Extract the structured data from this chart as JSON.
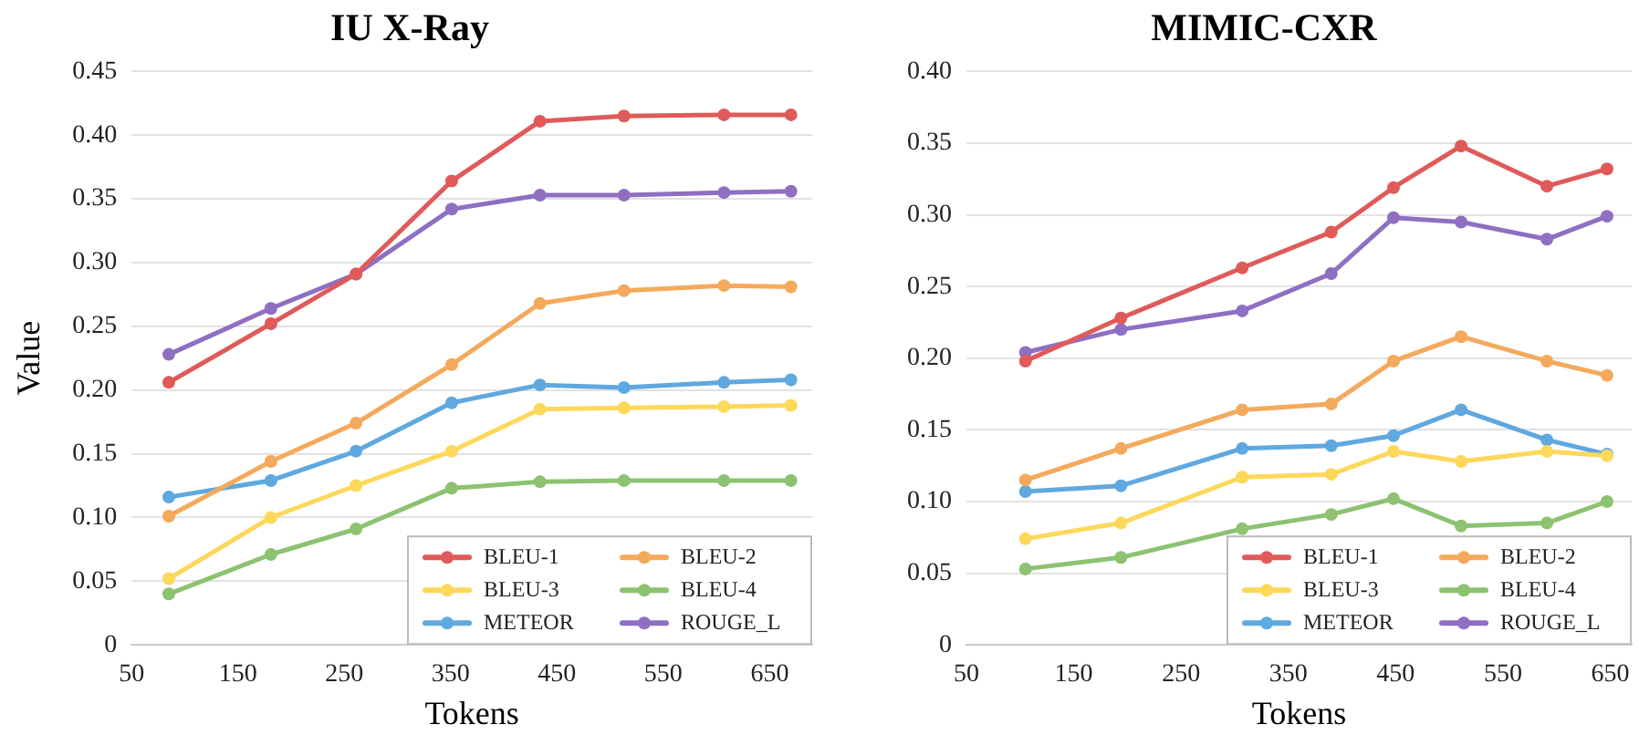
{
  "chart_data": [
    {
      "type": "line",
      "title": "IU X-Ray",
      "xlabel": "Tokens",
      "ylabel": "Value",
      "x": [
        85,
        181,
        261,
        351,
        434,
        513,
        607,
        670
      ],
      "xlim": [
        50,
        690
      ],
      "xticks": [
        50,
        150,
        250,
        350,
        450,
        550,
        650
      ],
      "ylim": [
        0,
        0.45
      ],
      "yticks": [
        0,
        {
          "value": 0.05,
          "label": "0.05"
        },
        {
          "value": 0.1,
          "label": "0.10"
        },
        {
          "value": 0.15,
          "label": "0.15"
        },
        {
          "value": 0.2,
          "label": "0.20"
        },
        {
          "value": 0.25,
          "label": "0.25"
        },
        {
          "value": 0.3,
          "label": "0.30"
        },
        {
          "value": 0.35,
          "label": "0.35"
        },
        {
          "value": 0.4,
          "label": "0.40"
        },
        {
          "value": 0.45,
          "label": "0.45"
        }
      ],
      "grid": "y",
      "legend": "bottom right",
      "marker": "circle",
      "line_style": "solid",
      "series": [
        {
          "name": "BLEU-1",
          "color": "#e05a5a",
          "values": [
            0.206,
            0.252,
            0.291,
            0.364,
            0.411,
            0.415,
            0.416,
            0.416
          ]
        },
        {
          "name": "BLEU-2",
          "color": "#f4a95c",
          "values": [
            0.101,
            0.144,
            0.174,
            0.22,
            0.268,
            0.278,
            0.282,
            0.281
          ]
        },
        {
          "name": "BLEU-3",
          "color": "#fdd85a",
          "values": [
            0.052,
            0.1,
            0.125,
            0.152,
            0.185,
            0.186,
            0.187,
            0.188
          ]
        },
        {
          "name": "BLEU-4",
          "color": "#8cc270",
          "values": [
            0.04,
            0.071,
            0.091,
            0.123,
            0.128,
            0.129,
            0.129,
            0.129
          ]
        },
        {
          "name": "METEOR",
          "color": "#5fa8e0",
          "values": [
            0.116,
            0.129,
            0.152,
            0.19,
            0.204,
            0.202,
            0.206,
            0.208
          ]
        },
        {
          "name": "ROUGE_L",
          "color": "#8e6fc2",
          "values": [
            0.228,
            0.264,
            0.291,
            0.342,
            0.353,
            0.353,
            0.355,
            0.356
          ]
        }
      ]
    },
    {
      "type": "line",
      "title": "MIMIC-CXR",
      "xlabel": "Tokens",
      "x": [
        105,
        194,
        307,
        390,
        448,
        511,
        591,
        647
      ],
      "xlim": [
        50,
        670
      ],
      "xticks": [
        50,
        150,
        250,
        350,
        450,
        550,
        650
      ],
      "ylim": [
        0,
        0.4
      ],
      "yticks": [
        0,
        {
          "value": 0.05,
          "label": "0.05"
        },
        {
          "value": 0.1,
          "label": "0.10"
        },
        {
          "value": 0.15,
          "label": "0.15"
        },
        {
          "value": 0.2,
          "label": "0.20"
        },
        {
          "value": 0.25,
          "label": "0.25"
        },
        {
          "value": 0.3,
          "label": "0.30"
        },
        {
          "value": 0.35,
          "label": "0.35"
        },
        {
          "value": 0.4,
          "label": "0.40"
        }
      ],
      "grid": "y",
      "legend": "bottom right",
      "marker": "circle",
      "line_style": "solid",
      "series": [
        {
          "name": "BLEU-1",
          "color": "#e05a5a",
          "values": [
            0.198,
            0.228,
            0.263,
            0.288,
            0.319,
            0.348,
            0.32,
            0.332
          ]
        },
        {
          "name": "BLEU-2",
          "color": "#f4a95c",
          "values": [
            0.115,
            0.137,
            0.164,
            0.168,
            0.198,
            0.215,
            0.198,
            0.188
          ]
        },
        {
          "name": "BLEU-3",
          "color": "#fdd85a",
          "values": [
            0.074,
            0.085,
            0.117,
            0.119,
            0.135,
            0.128,
            0.135,
            0.132
          ]
        },
        {
          "name": "BLEU-4",
          "color": "#8cc270",
          "values": [
            0.053,
            0.061,
            0.081,
            0.091,
            0.102,
            0.083,
            0.085,
            0.1
          ]
        },
        {
          "name": "METEOR",
          "color": "#5fa8e0",
          "values": [
            0.107,
            0.111,
            0.137,
            0.139,
            0.146,
            0.164,
            0.143,
            0.133
          ]
        },
        {
          "name": "ROUGE_L",
          "color": "#8e6fc2",
          "values": [
            0.204,
            0.22,
            0.233,
            0.259,
            0.298,
            0.295,
            0.283,
            0.299
          ]
        }
      ]
    }
  ]
}
